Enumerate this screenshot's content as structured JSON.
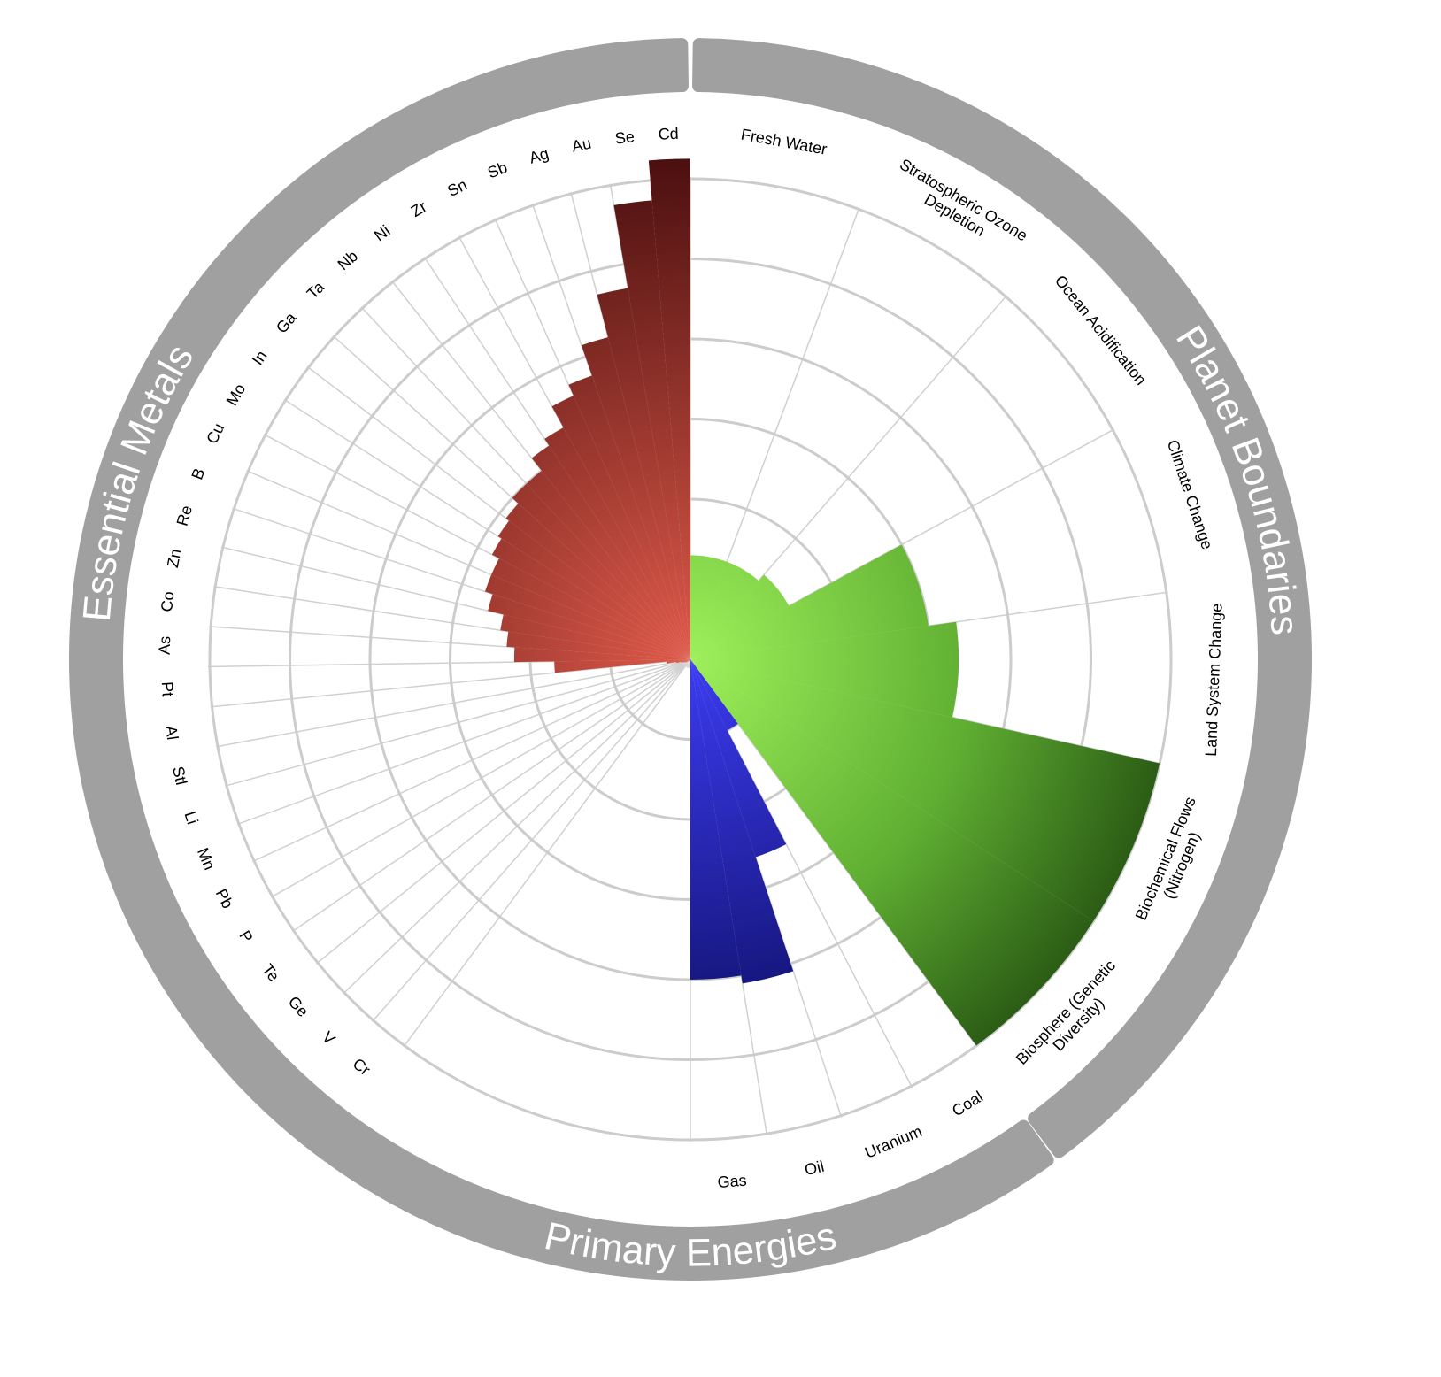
{
  "chart_data": {
    "type": "radial-bar",
    "title": "",
    "groups": [
      {
        "name": "Essential Metals",
        "color_dark": "#5e1515",
        "color_light": "#d44a3c",
        "categories": [
          "Cr",
          "V",
          "Ge",
          "Te",
          "P",
          "Pb",
          "Mn",
          "Li",
          "Stl",
          "Al",
          "Pt",
          "As",
          "Co",
          "Zn",
          "Re",
          "B",
          "Cu",
          "Mo",
          "In",
          "Ga",
          "Ta",
          "Nb",
          "Ni",
          "Zr",
          "Sn",
          "Sb",
          "Ag",
          "Au",
          "Se",
          "Cd"
        ],
        "values": [
          0.02,
          0.03,
          0.04,
          0.05,
          0.07,
          0.08,
          0.1,
          0.12,
          0.18,
          0.3,
          1.7,
          2.2,
          2.3,
          2.4,
          2.6,
          2.7,
          2.7,
          2.8,
          2.85,
          2.9,
          3.0,
          3.0,
          3.2,
          3.3,
          3.6,
          3.75,
          4.15,
          4.7,
          5.75,
          6.25
        ]
      },
      {
        "name": "Primary Energies",
        "color_dark": "#1a1a8c",
        "color_light": "#3535e6",
        "categories": [
          "Gas",
          "Oil",
          "Uranium",
          "Coal"
        ],
        "values": [
          4.0,
          4.1,
          2.6,
          1.0
        ]
      },
      {
        "name": "Planet Boundaries",
        "color_dark": "#2d6316",
        "color_light": "#95e850",
        "categories": [
          "Fresh Water",
          "Stratospheric Ozone Depletion",
          "Ocean Acidification",
          "Climate Change",
          "Land System Change",
          "Biochemical Flows (Nitrogen)",
          "Biosphere (Genetic Diversity)"
        ],
        "values": [
          1.3,
          1.3,
          1.4,
          3.0,
          3.35,
          6.0,
          6.0
        ]
      }
    ],
    "rings": [
      1,
      2,
      3,
      4,
      5,
      6
    ]
  }
}
